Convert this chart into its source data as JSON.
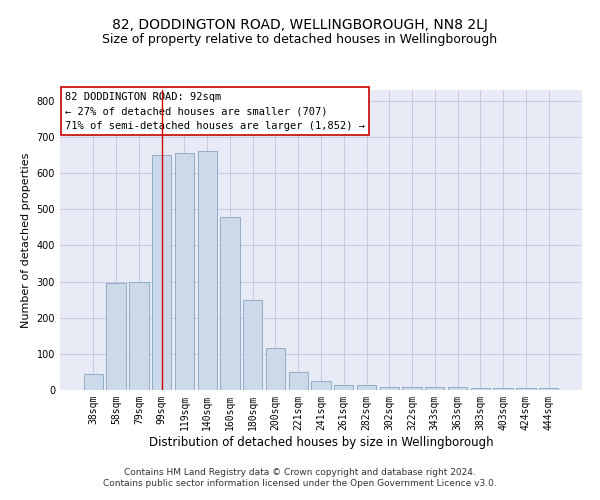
{
  "title": "82, DODDINGTON ROAD, WELLINGBOROUGH, NN8 2LJ",
  "subtitle": "Size of property relative to detached houses in Wellingborough",
  "xlabel": "Distribution of detached houses by size in Wellingborough",
  "ylabel": "Number of detached properties",
  "bar_labels": [
    "38sqm",
    "58sqm",
    "79sqm",
    "99sqm",
    "119sqm",
    "140sqm",
    "160sqm",
    "180sqm",
    "200sqm",
    "221sqm",
    "241sqm",
    "261sqm",
    "282sqm",
    "302sqm",
    "322sqm",
    "343sqm",
    "363sqm",
    "383sqm",
    "403sqm",
    "424sqm",
    "444sqm"
  ],
  "bar_values": [
    45,
    295,
    298,
    650,
    655,
    660,
    478,
    250,
    115,
    50,
    25,
    15,
    14,
    8,
    8,
    8,
    8,
    5,
    5,
    5,
    5
  ],
  "bar_color": "#ccd9e8",
  "bar_edge_color": "#7799bb",
  "vline_x": 3.0,
  "vline_color": "#cc0000",
  "annotation_box_text": "82 DODDINGTON ROAD: 92sqm\n← 27% of detached houses are smaller (707)\n71% of semi-detached houses are larger (1,852) →",
  "annotation_facecolor": "white",
  "annotation_edgecolor": "#cc0000",
  "ylim": [
    0,
    830
  ],
  "yticks": [
    0,
    100,
    200,
    300,
    400,
    500,
    600,
    700,
    800
  ],
  "grid_color": "#b0b0cc",
  "background_color": "#e8eaf6",
  "footer_text": "Contains HM Land Registry data © Crown copyright and database right 2024.\nContains public sector information licensed under the Open Government Licence v3.0.",
  "title_fontsize": 10,
  "subtitle_fontsize": 9,
  "xlabel_fontsize": 8.5,
  "ylabel_fontsize": 8,
  "tick_fontsize": 7,
  "annotation_fontsize": 7.5,
  "footer_fontsize": 6.5
}
